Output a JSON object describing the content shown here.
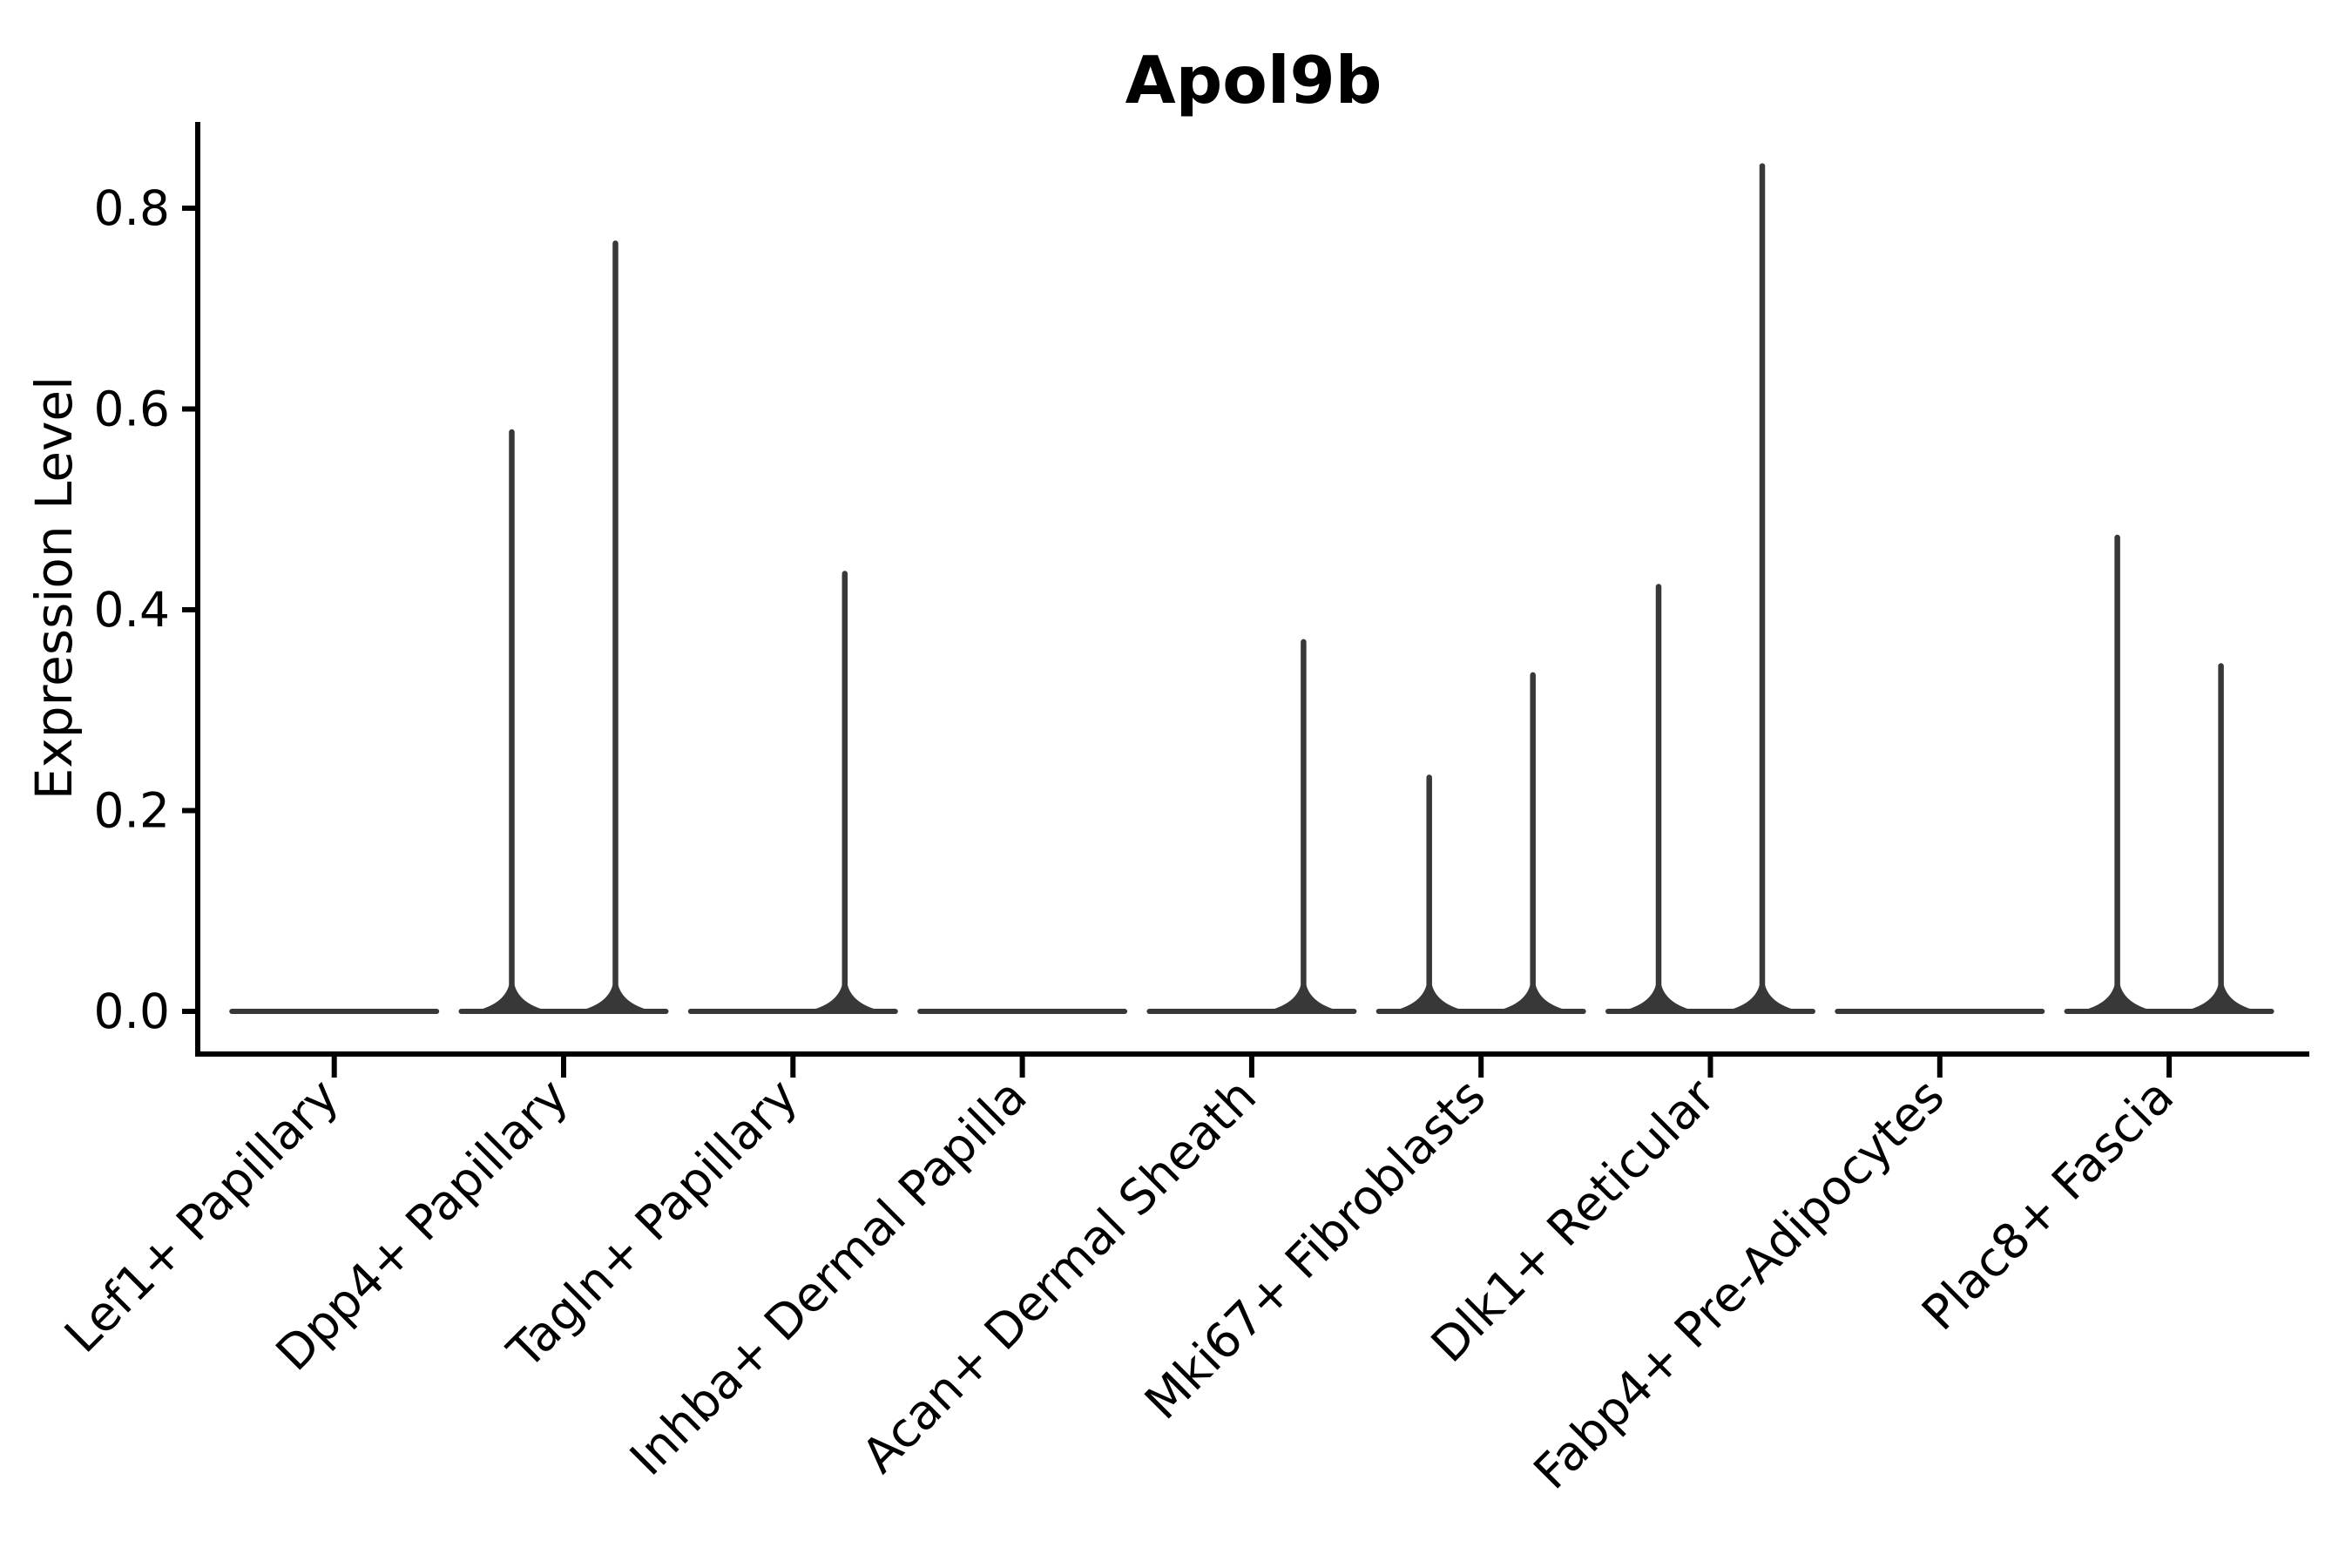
{
  "chart_data": {
    "type": "violin",
    "title": "Apol9b",
    "ylabel": "Expression Level",
    "xlabel": "",
    "grid": false,
    "legend_position": "none",
    "ylim": [
      0,
      0.88
    ],
    "y_ticks": [
      0.0,
      0.2,
      0.4,
      0.6,
      0.8
    ],
    "y_tick_labels": [
      "0.0",
      "0.2",
      "0.4",
      "0.6",
      "0.8"
    ],
    "violins_per_category": 2,
    "categories": [
      "Lef1+ Papillary",
      "Dpp4+ Papillary",
      "Tagln+ Papillary",
      "Inhba+ Dermal Papilla",
      "Acan+ Dermal Sheath",
      "Mki67+ Fibroblasts",
      "Dlk1+ Reticular",
      "Fabp4+ Pre-Adipocytes",
      "Plac8+ Fascia"
    ],
    "series": [
      {
        "name": "left",
        "max_expression": [
          0,
          0.577,
          0,
          0,
          0,
          0.233,
          0.423,
          0,
          0.472
        ]
      },
      {
        "name": "right",
        "max_expression": [
          0,
          0.765,
          0.436,
          0,
          0.368,
          0.335,
          0.842,
          0,
          0.344
        ]
      }
    ],
    "colors": {
      "violin": "#383838",
      "axis": "#000000",
      "text": "#000000",
      "background": "#ffffff"
    }
  }
}
